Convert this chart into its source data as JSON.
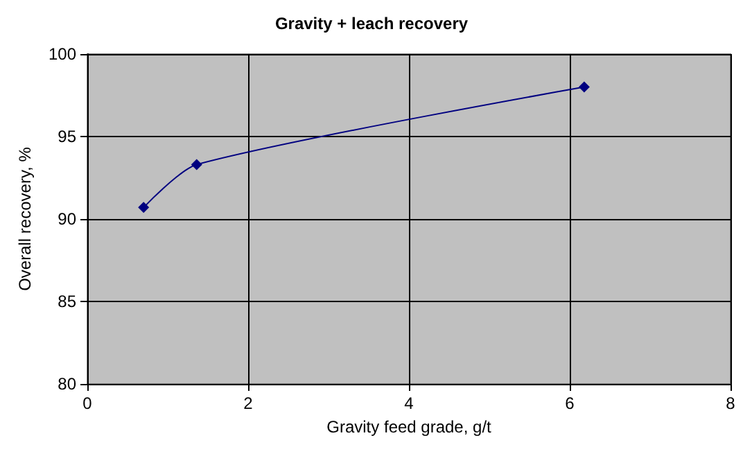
{
  "chart_data": {
    "type": "line",
    "title": "Gravity + leach recovery",
    "xlabel": "Gravity feed grade, g/t",
    "ylabel": "Overall recovery, %",
    "x": [
      0.7,
      1.36,
      6.18
    ],
    "series": [
      {
        "color": "#000080",
        "values": [
          90.7,
          93.3,
          98.0
        ]
      }
    ],
    "xlim": [
      0,
      8
    ],
    "xticks": [
      0,
      2,
      4,
      6,
      8
    ],
    "ylim": [
      80,
      100
    ],
    "yticks": [
      80,
      85,
      90,
      95,
      100
    ],
    "grid": true,
    "marker": "diamond",
    "line_style": "solid"
  }
}
